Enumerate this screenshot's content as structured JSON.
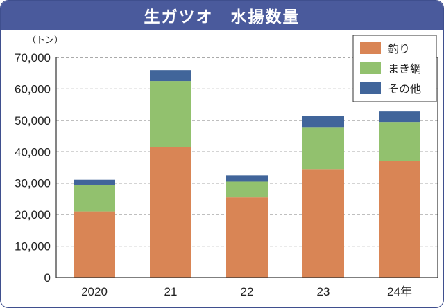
{
  "chart_data": {
    "type": "bar",
    "stacked": true,
    "title": "生ガツオ　水揚数量",
    "ylabel": "（トン）",
    "xlabel": "",
    "categories": [
      "2020",
      "21",
      "22",
      "23",
      "24年"
    ],
    "ylim": [
      0,
      70000
    ],
    "yticks": [
      0,
      10000,
      20000,
      30000,
      40000,
      50000,
      60000,
      70000
    ],
    "ytick_labels": [
      "0",
      "10,000",
      "20,000",
      "30,000",
      "40,000",
      "50,000",
      "60,000",
      "70,000"
    ],
    "grid": true,
    "legend_position": "top-right",
    "series": [
      {
        "name": "釣り",
        "color": "#d98555",
        "values": [
          21000,
          41500,
          25500,
          34500,
          37200
        ]
      },
      {
        "name": "まき網",
        "color": "#92c16e",
        "values": [
          8500,
          21000,
          5000,
          13200,
          12300
        ]
      },
      {
        "name": "その他",
        "color": "#41659a",
        "values": [
          1600,
          3500,
          2000,
          3600,
          3300
        ]
      }
    ]
  }
}
